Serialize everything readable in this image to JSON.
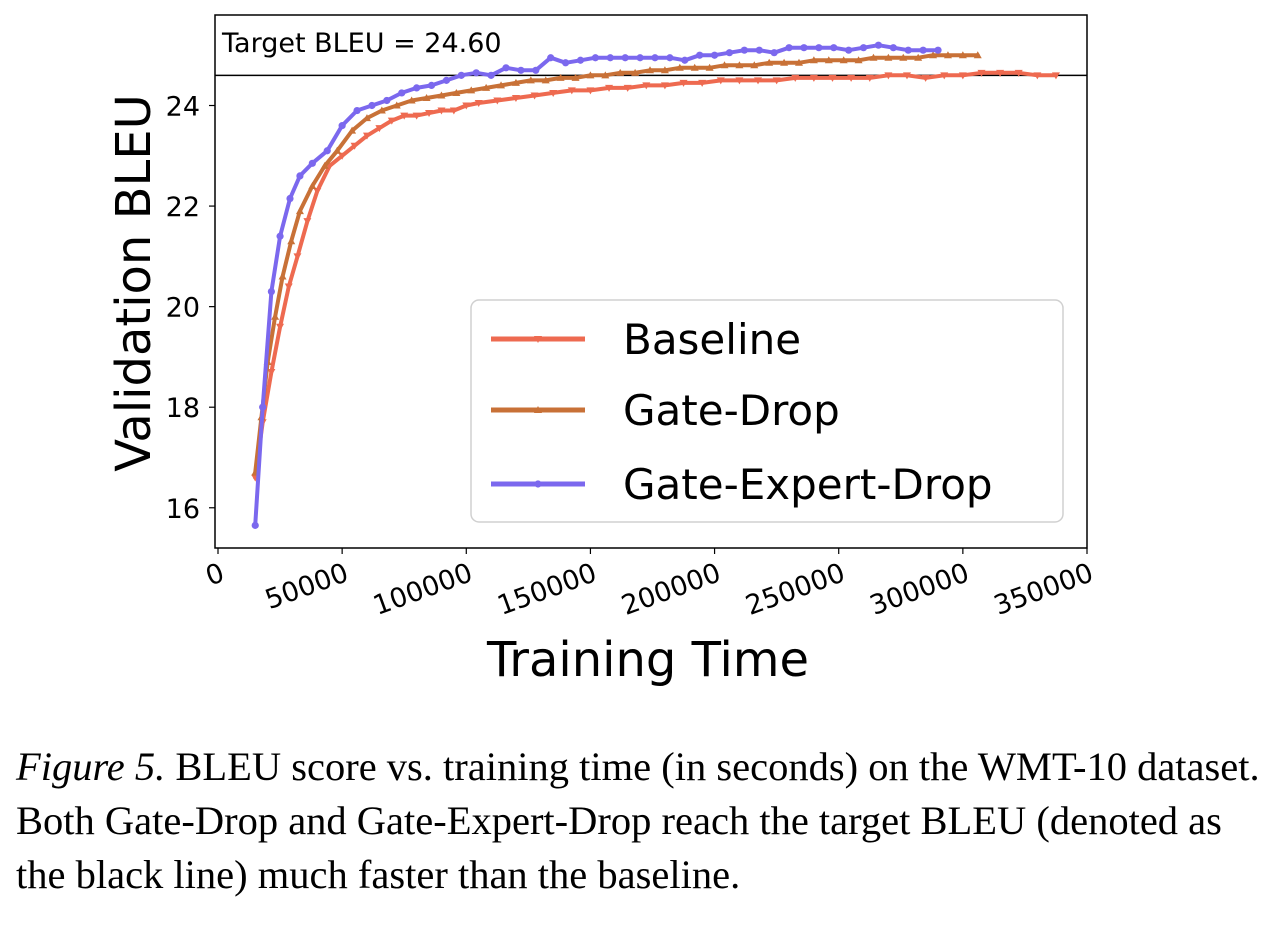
{
  "chart_data": {
    "type": "line",
    "xlabel": "Training Time",
    "ylabel": "Validation BLEU",
    "xlim": [
      0,
      350000
    ],
    "ylim": [
      15.2,
      25.8
    ],
    "xticks": [
      "0",
      "50000",
      "100000",
      "150000",
      "200000",
      "250000",
      "300000",
      "350000"
    ],
    "yticks": [
      "16",
      "18",
      "20",
      "22",
      "24"
    ],
    "grid": false,
    "legend_position": "bottom-right",
    "target": {
      "label": "Target BLEU = 24.60",
      "value": 24.6,
      "color": "#000000"
    },
    "series": [
      {
        "name": "Baseline",
        "color": "#EE6A50",
        "marker": "triangle-down",
        "x": [
          15000,
          18000,
          21500,
          25000,
          28500,
          32000,
          36000,
          40000,
          45000,
          50000,
          55000,
          60000,
          65000,
          70000,
          75000,
          80000,
          85000,
          90000,
          95000,
          100000,
          105000,
          112500,
          120000,
          127500,
          135000,
          142500,
          150000,
          157500,
          165000,
          172500,
          180000,
          187500,
          195000,
          202500,
          210000,
          217500,
          225000,
          232500,
          240000,
          247500,
          255000,
          262500,
          270000,
          277500,
          285000,
          292500,
          300000,
          307500,
          315000,
          322500,
          330000,
          337500
        ],
        "y": [
          16.6,
          17.7,
          18.7,
          19.6,
          20.4,
          21.0,
          21.7,
          22.3,
          22.8,
          23.0,
          23.2,
          23.4,
          23.55,
          23.7,
          23.8,
          23.8,
          23.85,
          23.9,
          23.9,
          24.0,
          24.05,
          24.1,
          24.15,
          24.2,
          24.25,
          24.3,
          24.3,
          24.35,
          24.35,
          24.4,
          24.4,
          24.45,
          24.45,
          24.5,
          24.5,
          24.5,
          24.5,
          24.55,
          24.55,
          24.55,
          24.55,
          24.55,
          24.6,
          24.6,
          24.55,
          24.6,
          24.6,
          24.65,
          24.65,
          24.65,
          24.6,
          24.6
        ]
      },
      {
        "name": "Gate-Drop",
        "color": "#C87137",
        "marker": "triangle-up",
        "x": [
          15000,
          17500,
          20000,
          23000,
          26000,
          29500,
          33000,
          38000,
          43000,
          48000,
          54000,
          60000,
          66000,
          72000,
          78000,
          84000,
          90000,
          96000,
          102000,
          108000,
          114000,
          120000,
          126000,
          132000,
          138000,
          144000,
          150000,
          156000,
          162000,
          168000,
          174000,
          180000,
          186000,
          192000,
          198000,
          204000,
          210000,
          216000,
          222000,
          228000,
          234000,
          240000,
          246000,
          252000,
          258000,
          264000,
          270000,
          276000,
          282000,
          288000,
          294000,
          300000,
          306000
        ],
        "y": [
          16.7,
          17.8,
          18.9,
          19.8,
          20.6,
          21.3,
          21.9,
          22.4,
          22.8,
          23.1,
          23.5,
          23.75,
          23.9,
          24.0,
          24.1,
          24.15,
          24.2,
          24.25,
          24.3,
          24.35,
          24.4,
          24.45,
          24.5,
          24.5,
          24.55,
          24.55,
          24.6,
          24.6,
          24.65,
          24.65,
          24.7,
          24.7,
          24.75,
          24.75,
          24.75,
          24.8,
          24.8,
          24.8,
          24.85,
          24.85,
          24.85,
          24.9,
          24.9,
          24.9,
          24.9,
          24.95,
          24.95,
          24.95,
          24.95,
          25.0,
          25.0,
          25.0,
          25.0
        ]
      },
      {
        "name": "Gate-Expert-Drop",
        "color": "#7B68EE",
        "marker": "circle",
        "x": [
          15000,
          18000,
          21500,
          25000,
          29000,
          33000,
          38000,
          44000,
          50000,
          56000,
          62000,
          68000,
          74000,
          80000,
          86000,
          92000,
          98000,
          104000,
          110000,
          116000,
          122000,
          128000,
          134000,
          140000,
          146000,
          152000,
          158000,
          164000,
          170000,
          176000,
          182000,
          188000,
          194000,
          200000,
          206000,
          212000,
          218000,
          224000,
          230000,
          236000,
          242000,
          248000,
          254000,
          260000,
          266000,
          272000,
          278000,
          284000,
          290000
        ],
        "y": [
          15.65,
          18.0,
          20.3,
          21.4,
          22.15,
          22.6,
          22.85,
          23.1,
          23.6,
          23.9,
          24.0,
          24.1,
          24.25,
          24.35,
          24.4,
          24.5,
          24.6,
          24.65,
          24.6,
          24.75,
          24.7,
          24.7,
          24.95,
          24.85,
          24.9,
          24.95,
          24.95,
          24.95,
          24.95,
          24.95,
          24.95,
          24.9,
          25.0,
          25.0,
          25.05,
          25.1,
          25.1,
          25.05,
          25.15,
          25.15,
          25.15,
          25.15,
          25.1,
          25.15,
          25.2,
          25.15,
          25.1,
          25.1,
          25.1
        ]
      }
    ]
  },
  "caption": {
    "label": "Figure 5.",
    "text": " BLEU score vs. training time (in seconds) on the WMT-10 dataset. Both Gate-Drop and Gate-Expert-Drop reach the target BLEU (denoted as the black line) much faster than the baseline."
  }
}
